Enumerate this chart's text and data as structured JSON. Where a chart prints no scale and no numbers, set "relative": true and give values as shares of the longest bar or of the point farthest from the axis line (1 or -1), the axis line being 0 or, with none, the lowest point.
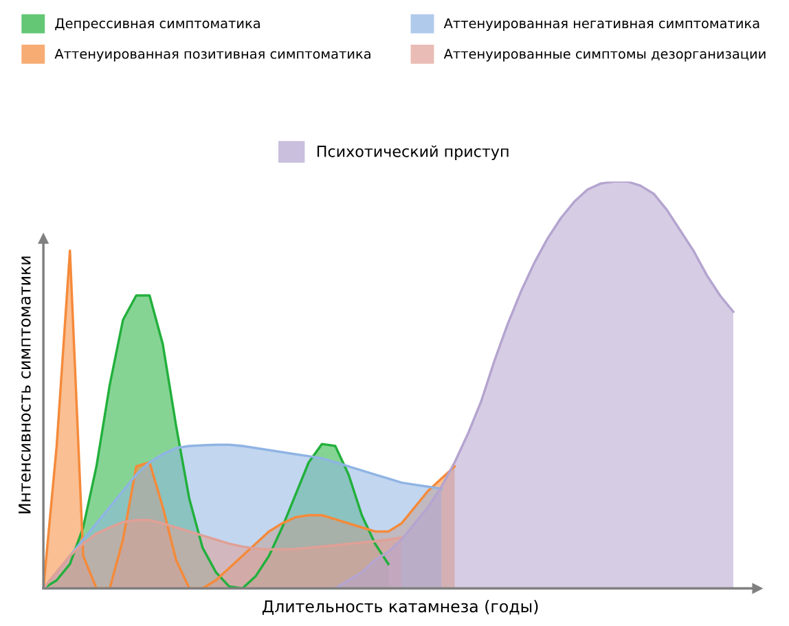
{
  "chart_data": {
    "type": "area",
    "relative": true,
    "xlabel": "Длительность катамнеза (годы)",
    "ylabel": "Интенсивность симптоматики",
    "legend": "top",
    "categories": [
      null,
      null,
      null,
      null,
      null,
      null,
      null,
      null,
      null,
      null,
      null,
      null,
      null,
      null,
      null,
      null,
      null,
      null,
      null,
      null,
      null,
      null,
      null,
      null,
      null,
      null,
      null,
      null,
      null,
      null,
      null,
      null,
      null,
      null,
      null,
      null,
      null,
      null,
      null,
      null,
      null,
      null,
      null,
      null,
      null,
      null,
      null,
      null,
      null,
      null,
      null,
      null,
      null
    ],
    "series": [
      {
        "name": "Депрессивная симптоматика",
        "color": "#22b03c",
        "values": [
          0,
          0.02,
          0.06,
          0.15,
          0.3,
          0.5,
          0.66,
          0.72,
          0.72,
          0.6,
          0.4,
          0.22,
          0.1,
          0.04,
          0.005,
          0,
          0.03,
          0.08,
          0.15,
          0.23,
          0.31,
          0.355,
          0.35,
          0.28,
          0.18,
          0.11,
          0.06,
          null,
          null,
          null,
          null,
          null,
          null,
          null,
          null,
          null,
          null,
          null,
          null,
          null,
          null,
          null,
          null,
          null,
          null,
          null,
          null,
          null,
          null,
          null,
          null,
          null,
          null
        ]
      },
      {
        "name": "Аттенуированная позитивная симптоматика",
        "color": "#f58a3a",
        "values": [
          0,
          0.35,
          0.83,
          0.08,
          0,
          0,
          0.12,
          0.3,
          0.31,
          0.2,
          0.07,
          0,
          0,
          0.02,
          0.05,
          0.08,
          0.11,
          0.14,
          0.16,
          0.175,
          0.18,
          0.18,
          0.17,
          0.16,
          0.15,
          0.14,
          0.14,
          0.16,
          0.2,
          0.24,
          0.27,
          0.3,
          null,
          null,
          null,
          null,
          null,
          null,
          null,
          null,
          null,
          null,
          null,
          null,
          null,
          null,
          null,
          null,
          null,
          null,
          null,
          null,
          null
        ]
      },
      {
        "name": "Аттенуированная негативная симптоматика",
        "color": "#8fb4e3",
        "values": [
          0,
          0.04,
          0.08,
          0.12,
          0.16,
          0.2,
          0.24,
          0.28,
          0.31,
          0.33,
          0.345,
          0.35,
          0.352,
          0.353,
          0.353,
          0.35,
          0.345,
          0.34,
          0.335,
          0.33,
          0.325,
          0.32,
          0.31,
          0.3,
          0.29,
          0.28,
          0.27,
          0.26,
          0.255,
          0.25,
          0.245,
          null,
          null,
          null,
          null,
          null,
          null,
          null,
          null,
          null,
          null,
          null,
          null,
          null,
          null,
          null,
          null,
          null,
          null,
          null,
          null,
          null,
          null
        ]
      },
      {
        "name": "Аттенуированные симптомы дезорганизации",
        "color": "#e0a096",
        "values": [
          0,
          0.04,
          0.08,
          0.11,
          0.135,
          0.15,
          0.163,
          0.168,
          0.168,
          0.16,
          0.15,
          0.14,
          0.13,
          0.12,
          0.11,
          0.103,
          0.098,
          0.096,
          0.096,
          0.097,
          0.1,
          0.103,
          0.106,
          0.11,
          0.113,
          0.116,
          0.12,
          0.125,
          null,
          null,
          null,
          null,
          null,
          null,
          null,
          null,
          null,
          null,
          null,
          null,
          null,
          null,
          null,
          null,
          null,
          null,
          null,
          null,
          null,
          null,
          null,
          null,
          null
        ]
      },
      {
        "name": "Психотический приступ",
        "color": "#b4a4cf",
        "values": [
          null,
          null,
          null,
          null,
          null,
          null,
          null,
          null,
          null,
          null,
          null,
          null,
          null,
          null,
          null,
          null,
          null,
          null,
          null,
          null,
          null,
          null,
          0,
          0.02,
          0.04,
          0.07,
          0.09,
          0.12,
          0.16,
          0.2,
          0.25,
          0.31,
          0.38,
          0.46,
          0.56,
          0.65,
          0.73,
          0.8,
          0.86,
          0.91,
          0.95,
          0.98,
          0.995,
          1.0,
          1.0,
          0.99,
          0.97,
          0.93,
          0.88,
          0.83,
          0.77,
          0.72,
          0.68
        ]
      }
    ]
  }
}
